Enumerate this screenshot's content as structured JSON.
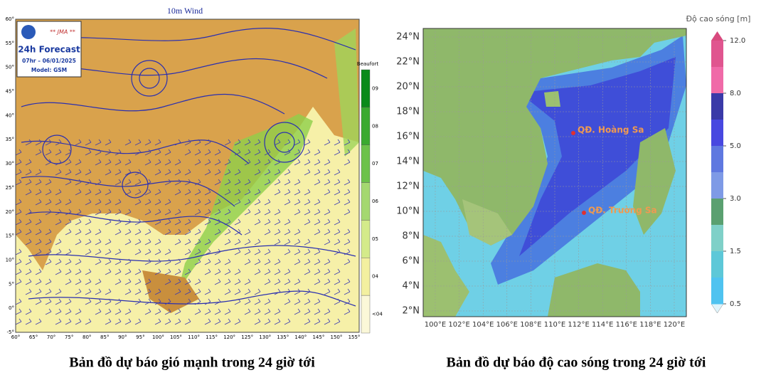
{
  "left_map": {
    "title": "10m Wind",
    "agency": "** JMA **",
    "forecast": "24h Forecast",
    "valid_time": "07hr – 06/01/2025",
    "model": "Model: GSM",
    "legend_title": "Beaufort",
    "legend_levels": [
      "09",
      "08",
      "07",
      "06",
      "05",
      "04",
      "<04"
    ],
    "lat_labels": [
      "60°",
      "55°",
      "50°",
      "45°",
      "40°",
      "35°",
      "30°",
      "25°",
      "20°",
      "15°",
      "10°",
      "5°",
      "0°",
      "-5°"
    ],
    "lon_labels": [
      "60°",
      "65°",
      "70°",
      "75°",
      "80°",
      "85°",
      "90°",
      "95°",
      "100°",
      "105°",
      "110°",
      "115°",
      "120°",
      "125°",
      "130°",
      "135°",
      "140°",
      "145°",
      "150°",
      "155°"
    ],
    "caption": "Bản đồ dự báo gió mạnh trong 24 giờ tới"
  },
  "right_map": {
    "legend_title": "Độ cao sóng [m]",
    "legend_ticks": [
      "12.0",
      "8.0",
      "5.0",
      "3.0",
      "1.5",
      "0.5"
    ],
    "lat_labels": [
      "24°N",
      "22°N",
      "20°N",
      "18°N",
      "16°N",
      "14°N",
      "12°N",
      "10°N",
      "8°N",
      "6°N",
      "4°N",
      "2°N"
    ],
    "lon_labels": [
      "100°E",
      "102°E",
      "104°E",
      "106°E",
      "108°E",
      "110°E",
      "112°E",
      "114°E",
      "116°E",
      "118°E",
      "120°E"
    ],
    "places": [
      "QĐ. Hoàng Sa",
      "QĐ. Trường Sa"
    ],
    "caption": "Bản đồ dự báo độ cao sóng trong 24 giờ tới"
  }
}
